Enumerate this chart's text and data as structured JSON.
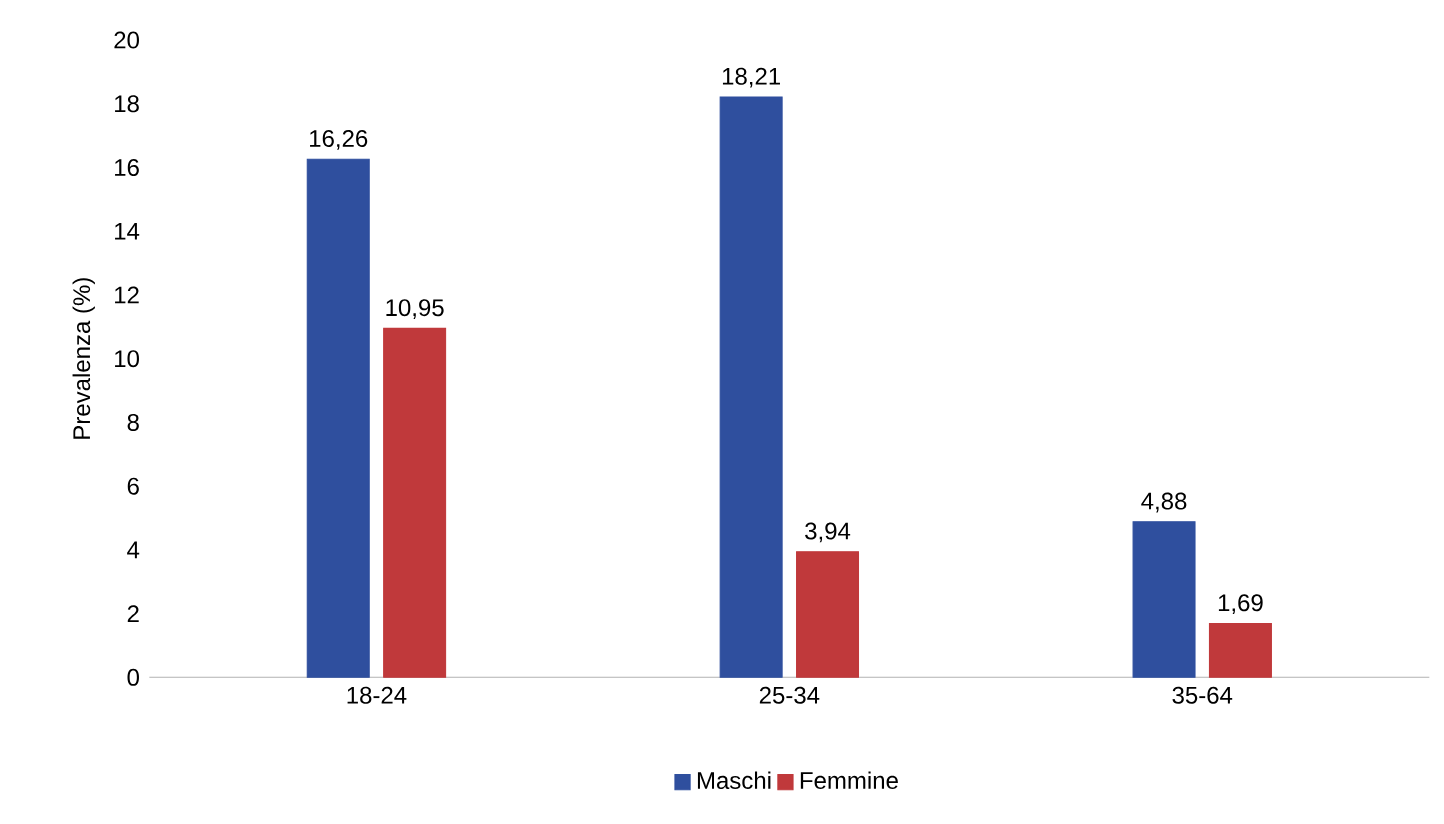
{
  "chart_data": {
    "type": "bar",
    "ylabel": "Prevalenza (%)",
    "categories": [
      "18-24",
      "25-34",
      "35-64"
    ],
    "series": [
      {
        "name": "Maschi",
        "color": "#2f4f9e",
        "values": [
          16.26,
          18.21,
          4.88
        ],
        "value_labels": [
          "16,26",
          "18,21",
          "4,88"
        ]
      },
      {
        "name": "Femmine",
        "color": "#c0393b",
        "values": [
          10.95,
          3.94,
          1.69
        ],
        "value_labels": [
          "10,95",
          "3,94",
          "1,69"
        ]
      }
    ],
    "ylim": [
      0,
      20
    ],
    "yticks": [
      0,
      2,
      4,
      6,
      8,
      10,
      12,
      14,
      16,
      18,
      20
    ],
    "grid": false,
    "legend": "bottom"
  }
}
